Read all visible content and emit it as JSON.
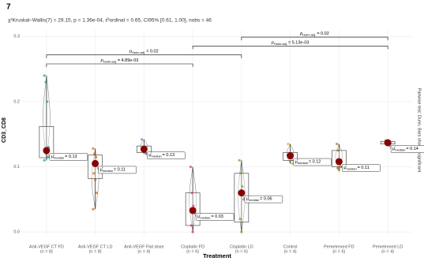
{
  "chart_data": {
    "type": "box",
    "title": "7",
    "subtitle": "χ²Kruskal–Wallis(7) = 29.15, p = 1.36e-04, ε̂²ordinal = 0.65, CI95% [0.61, 1.00], nobs = 46",
    "x_label": "Treatment",
    "y_label": "CD3_CD8",
    "caption": "Pairwise test: Dunn, Bars shown: significant",
    "categories": [
      "Anti-VEGF CT FD",
      "Anti-VEGF CT LD",
      "Anti-VEGF Flat dose",
      "Cisplatin FD",
      "Cisplatin LD",
      "Control",
      "Pemetrexed FD",
      "Pemetrexed LD"
    ],
    "n_labels": [
      "(n = 8)",
      "(n = 8)",
      "(n = 4)",
      "(n = 6)",
      "(n = 6)",
      "(n = 4)",
      "(n = 6)",
      "(n = 4)"
    ],
    "colors": [
      "#1b9e77",
      "#d95f02",
      "#7570b3",
      "#e7298a",
      "#66a61e",
      "#e6ab02",
      "#a6761d",
      "#666666"
    ],
    "boxes": [
      {
        "low": 0.11,
        "q1": 0.114,
        "median": 0.125,
        "q3": 0.162,
        "high": 0.24,
        "points": [
          0.24,
          0.23,
          0.2,
          0.13,
          0.125,
          0.12,
          0.115,
          0.11
        ]
      },
      {
        "low": 0.035,
        "q1": 0.082,
        "median": 0.105,
        "q3": 0.118,
        "high": 0.128,
        "points": [
          0.128,
          0.12,
          0.115,
          0.105,
          0.09,
          0.08,
          0.06,
          0.035
        ]
      },
      {
        "low": 0.12,
        "q1": 0.122,
        "median": 0.127,
        "q3": 0.132,
        "high": 0.142,
        "points": [
          0.142,
          0.13,
          0.125,
          0.12
        ]
      },
      {
        "low": 0.0,
        "q1": 0.01,
        "median": 0.033,
        "q3": 0.06,
        "high": 0.1,
        "points": [
          0.1,
          0.06,
          0.04,
          0.03,
          0.01,
          0.0
        ]
      },
      {
        "low": 0.0,
        "q1": 0.015,
        "median": 0.06,
        "q3": 0.09,
        "high": 0.11,
        "points": [
          0.11,
          0.09,
          0.07,
          0.05,
          0.02,
          0.0
        ]
      },
      {
        "low": 0.105,
        "q1": 0.11,
        "median": 0.117,
        "q3": 0.122,
        "high": 0.135,
        "points": [
          0.135,
          0.12,
          0.115,
          0.105
        ]
      },
      {
        "low": 0.095,
        "q1": 0.1,
        "median": 0.108,
        "q3": 0.125,
        "high": 0.135,
        "points": [
          0.135,
          0.125,
          0.11,
          0.1,
          0.098,
          0.095
        ]
      },
      {
        "low": 0.133,
        "q1": 0.135,
        "median": 0.137,
        "q3": 0.139,
        "high": 0.14,
        "points": [
          0.14,
          0.138,
          0.136,
          0.133
        ]
      }
    ],
    "median_symbol": "μ̂",
    "median_sub": "median",
    "value_labels": [
      "= 0.13",
      "= 0.11",
      "= 0.13",
      "= 0.03",
      "= 0.06",
      "= 0.12",
      "= 0.11",
      "= 0.14"
    ],
    "median_color": "#8b0000",
    "pairwise_p": "p",
    "pairwise_sub": "Holm-adj.",
    "pairwise": [
      {
        "from": "Anti-VEGF CT FD",
        "to": "Cisplatin FD",
        "label": "= 4.89e-03"
      },
      {
        "from": "Anti-VEGF CT FD",
        "to": "Cisplatin LD",
        "label": "= 0.02"
      },
      {
        "from": "Cisplatin FD",
        "to": "Pemetrexed LD",
        "label": "= 5.13e-03"
      },
      {
        "from": "Cisplatin LD",
        "to": "Pemetrexed LD",
        "label": "= 0.02"
      }
    ],
    "ylim": [
      -0.007,
      0.31
    ],
    "yticks": [
      {
        "value": 0,
        "label": "0.0"
      },
      0.1,
      0.2,
      0.3
    ],
    "grid": true
  }
}
